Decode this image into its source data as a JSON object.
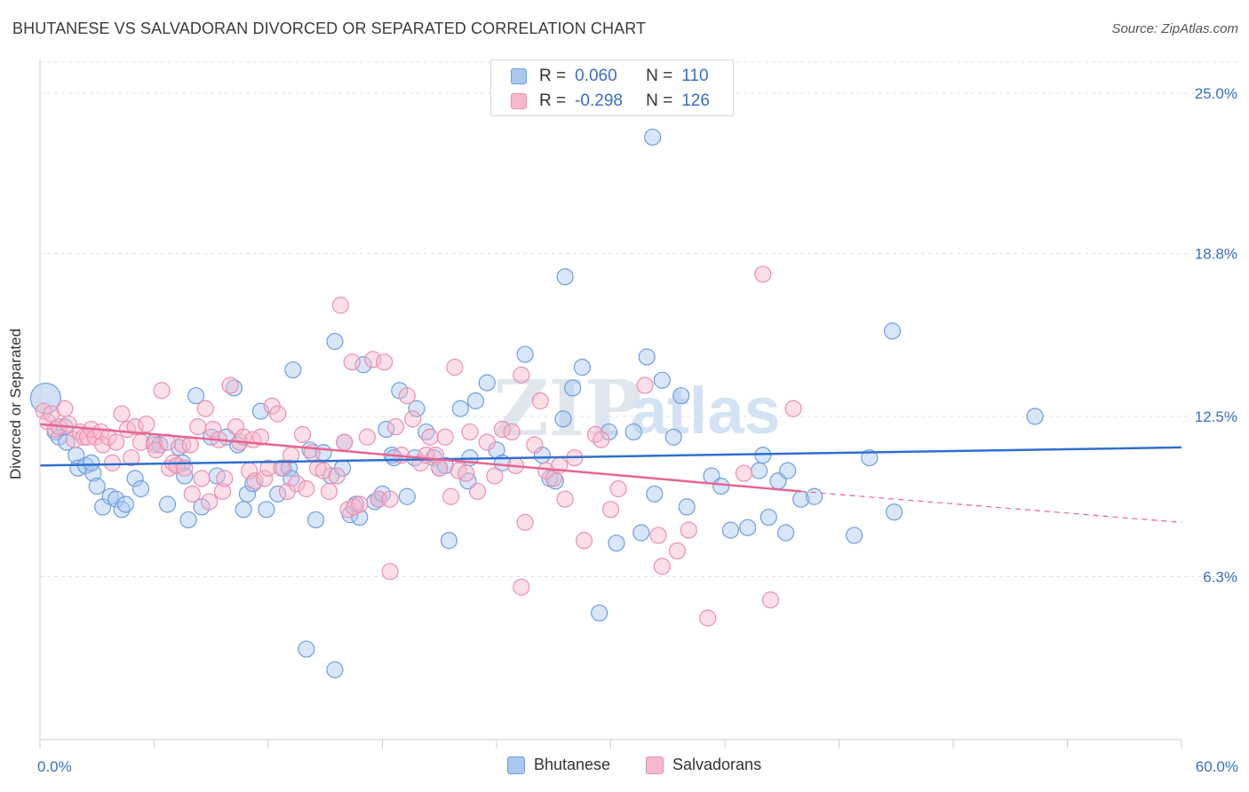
{
  "header": {
    "title": "BHUTANESE VS SALVADORAN DIVORCED OR SEPARATED CORRELATION CHART",
    "source": "Source: ZipAtlas.com"
  },
  "legend": {
    "row1": {
      "r_label": "R =",
      "r_value": "0.060",
      "n_label": "N =",
      "n_value": "110"
    },
    "row2": {
      "r_label": "R =",
      "r_value": "-0.298",
      "n_label": "N =",
      "n_value": "126"
    }
  },
  "bottom_legend": {
    "series1": "Bhutanese",
    "series2": "Salvadorans"
  },
  "watermark": {
    "zip": "ZIP",
    "atlas": "atlas"
  },
  "colors": {
    "blue_fill": "#a9c8f0",
    "blue_stroke": "#6f9fe0",
    "blue_line": "#2f6fd0",
    "pink_fill": "#f6b8cc",
    "pink_stroke": "#ec8fae",
    "pink_line": "#e6668f",
    "axis_label": "#3a6fc4",
    "grid": "#e0e0e0"
  },
  "chart_data": {
    "type": "scatter",
    "title": "BHUTANESE VS SALVADORAN DIVORCED OR SEPARATED CORRELATION CHART",
    "xlabel": "",
    "ylabel": "Divorced or Separated",
    "xlim": [
      0,
      60
    ],
    "ylim": [
      0,
      26.2
    ],
    "x_tick_labels": [
      "0.0%",
      "60.0%"
    ],
    "y_ticks": [
      6.3,
      12.5,
      18.8,
      25.0
    ],
    "y_tick_labels": [
      "6.3%",
      "12.5%",
      "18.8%",
      "25.0%"
    ],
    "grid": "horizontal dashed",
    "legend_position": "top-center",
    "series": [
      {
        "name": "Bhutanese",
        "r": 0.06,
        "n": 110,
        "trend": {
          "x": [
            0,
            60
          ],
          "y": [
            10.6,
            11.3
          ]
        },
        "points": [
          [
            0.3,
            13.2
          ],
          [
            0.8,
            11.9
          ],
          [
            1.0,
            11.7
          ],
          [
            1.3,
            12.1
          ],
          [
            1.4,
            11.5
          ],
          [
            1.9,
            11.0
          ],
          [
            2.0,
            10.5
          ],
          [
            2.4,
            10.6
          ],
          [
            2.8,
            10.3
          ],
          [
            2.7,
            10.7
          ],
          [
            3.0,
            9.8
          ],
          [
            3.3,
            9.0
          ],
          [
            3.7,
            9.4
          ],
          [
            4.0,
            9.3
          ],
          [
            4.3,
            8.9
          ],
          [
            4.5,
            9.1
          ],
          [
            5.0,
            10.1
          ],
          [
            5.3,
            9.7
          ],
          [
            6.0,
            11.5
          ],
          [
            6.3,
            11.4
          ],
          [
            6.7,
            9.1
          ],
          [
            7.3,
            11.3
          ],
          [
            7.5,
            10.7
          ],
          [
            7.6,
            10.2
          ],
          [
            7.8,
            8.5
          ],
          [
            8.2,
            13.3
          ],
          [
            8.5,
            9.0
          ],
          [
            9.0,
            11.7
          ],
          [
            9.3,
            10.2
          ],
          [
            9.8,
            11.7
          ],
          [
            10.2,
            13.6
          ],
          [
            10.4,
            11.4
          ],
          [
            10.7,
            8.9
          ],
          [
            10.9,
            9.5
          ],
          [
            11.2,
            9.9
          ],
          [
            11.6,
            12.7
          ],
          [
            11.9,
            8.9
          ],
          [
            12.5,
            9.5
          ],
          [
            12.8,
            10.5
          ],
          [
            13.1,
            10.5
          ],
          [
            13.2,
            10.1
          ],
          [
            13.3,
            14.3
          ],
          [
            14.2,
            11.2
          ],
          [
            14.5,
            8.5
          ],
          [
            14.9,
            11.1
          ],
          [
            15.3,
            10.2
          ],
          [
            15.5,
            15.4
          ],
          [
            15.9,
            10.5
          ],
          [
            16.0,
            11.5
          ],
          [
            16.3,
            8.7
          ],
          [
            16.6,
            9.1
          ],
          [
            16.8,
            8.6
          ],
          [
            17.0,
            14.5
          ],
          [
            17.6,
            9.2
          ],
          [
            17.8,
            9.3
          ],
          [
            18.0,
            9.5
          ],
          [
            18.2,
            12.0
          ],
          [
            18.5,
            11.0
          ],
          [
            18.6,
            10.9
          ],
          [
            18.9,
            13.5
          ],
          [
            19.3,
            9.4
          ],
          [
            19.7,
            10.9
          ],
          [
            19.8,
            12.8
          ],
          [
            20.3,
            11.9
          ],
          [
            20.7,
            10.9
          ],
          [
            21.0,
            10.5
          ],
          [
            21.3,
            10.6
          ],
          [
            21.5,
            7.7
          ],
          [
            22.1,
            12.8
          ],
          [
            22.5,
            10.0
          ],
          [
            22.6,
            10.9
          ],
          [
            22.9,
            13.1
          ],
          [
            23.5,
            13.8
          ],
          [
            24.0,
            11.2
          ],
          [
            24.3,
            10.7
          ],
          [
            25.5,
            14.9
          ],
          [
            26.4,
            11.0
          ],
          [
            26.8,
            10.1
          ],
          [
            27.1,
            10.0
          ],
          [
            27.5,
            12.4
          ],
          [
            27.6,
            17.9
          ],
          [
            28.0,
            13.6
          ],
          [
            28.5,
            14.4
          ],
          [
            29.4,
            4.9
          ],
          [
            29.9,
            11.9
          ],
          [
            30.3,
            7.6
          ],
          [
            31.2,
            11.9
          ],
          [
            31.6,
            8.0
          ],
          [
            31.9,
            14.8
          ],
          [
            32.3,
            9.5
          ],
          [
            32.7,
            13.9
          ],
          [
            33.3,
            11.7
          ],
          [
            33.7,
            13.3
          ],
          [
            34.0,
            9.0
          ],
          [
            35.3,
            10.2
          ],
          [
            35.8,
            9.8
          ],
          [
            36.3,
            8.1
          ],
          [
            37.2,
            8.2
          ],
          [
            37.8,
            10.4
          ],
          [
            38.0,
            11.0
          ],
          [
            38.3,
            8.6
          ],
          [
            38.8,
            10.0
          ],
          [
            39.2,
            8.0
          ],
          [
            39.3,
            10.4
          ],
          [
            40.0,
            9.3
          ],
          [
            40.7,
            9.4
          ],
          [
            42.8,
            7.9
          ],
          [
            43.6,
            10.9
          ],
          [
            44.8,
            15.8
          ],
          [
            44.9,
            8.8
          ],
          [
            15.5,
            2.7
          ],
          [
            14.0,
            3.5
          ],
          [
            32.2,
            23.3
          ],
          [
            52.3,
            12.5
          ]
        ]
      },
      {
        "name": "Salvadorans",
        "r": -0.298,
        "n": 126,
        "trend": {
          "x": [
            0,
            40
          ],
          "y": [
            12.2,
            9.6
          ]
        },
        "trend_dashed": {
          "x": [
            40,
            60
          ],
          "y": [
            9.6,
            8.4
          ]
        },
        "points": [
          [
            0.2,
            12.7
          ],
          [
            0.4,
            12.3
          ],
          [
            0.6,
            12.6
          ],
          [
            0.8,
            12.0
          ],
          [
            1.0,
            12.1
          ],
          [
            1.3,
            12.8
          ],
          [
            1.5,
            12.2
          ],
          [
            1.8,
            11.6
          ],
          [
            2.1,
            11.9
          ],
          [
            2.3,
            11.7
          ],
          [
            2.5,
            11.7
          ],
          [
            2.7,
            12.0
          ],
          [
            2.9,
            11.7
          ],
          [
            3.2,
            11.9
          ],
          [
            3.3,
            11.4
          ],
          [
            3.6,
            11.7
          ],
          [
            3.8,
            10.7
          ],
          [
            4.0,
            11.5
          ],
          [
            4.3,
            12.6
          ],
          [
            4.6,
            12.0
          ],
          [
            4.8,
            10.9
          ],
          [
            5.0,
            12.1
          ],
          [
            5.3,
            11.5
          ],
          [
            5.6,
            12.2
          ],
          [
            6.0,
            11.4
          ],
          [
            6.1,
            11.2
          ],
          [
            6.4,
            13.5
          ],
          [
            6.7,
            11.5
          ],
          [
            6.8,
            10.5
          ],
          [
            7.0,
            10.7
          ],
          [
            7.2,
            10.6
          ],
          [
            7.5,
            11.4
          ],
          [
            7.6,
            10.5
          ],
          [
            7.9,
            11.4
          ],
          [
            8.0,
            9.5
          ],
          [
            8.3,
            12.1
          ],
          [
            8.5,
            10.1
          ],
          [
            8.7,
            12.8
          ],
          [
            8.9,
            9.2
          ],
          [
            9.1,
            12.0
          ],
          [
            9.4,
            11.6
          ],
          [
            9.6,
            9.6
          ],
          [
            9.7,
            10.1
          ],
          [
            10.0,
            13.7
          ],
          [
            10.3,
            12.1
          ],
          [
            10.5,
            11.5
          ],
          [
            10.7,
            11.7
          ],
          [
            11.0,
            10.4
          ],
          [
            11.2,
            11.6
          ],
          [
            11.3,
            10.0
          ],
          [
            11.6,
            11.7
          ],
          [
            11.8,
            10.1
          ],
          [
            12.0,
            10.5
          ],
          [
            12.2,
            12.9
          ],
          [
            12.5,
            12.6
          ],
          [
            12.7,
            10.5
          ],
          [
            13.0,
            9.6
          ],
          [
            13.2,
            11.0
          ],
          [
            13.5,
            9.9
          ],
          [
            13.8,
            11.8
          ],
          [
            14.0,
            9.7
          ],
          [
            14.3,
            11.1
          ],
          [
            14.6,
            10.5
          ],
          [
            14.9,
            10.4
          ],
          [
            15.2,
            9.6
          ],
          [
            15.6,
            10.2
          ],
          [
            15.8,
            16.8
          ],
          [
            16.0,
            11.5
          ],
          [
            16.2,
            8.9
          ],
          [
            16.5,
            9.0
          ],
          [
            16.8,
            9.1
          ],
          [
            17.2,
            11.7
          ],
          [
            17.5,
            14.7
          ],
          [
            17.8,
            9.3
          ],
          [
            18.1,
            14.6
          ],
          [
            18.4,
            9.3
          ],
          [
            18.7,
            12.1
          ],
          [
            19.0,
            11.0
          ],
          [
            19.3,
            13.3
          ],
          [
            19.6,
            12.4
          ],
          [
            20.0,
            10.7
          ],
          [
            20.3,
            11.0
          ],
          [
            20.5,
            11.7
          ],
          [
            20.8,
            11.0
          ],
          [
            21.0,
            10.5
          ],
          [
            21.3,
            11.7
          ],
          [
            21.6,
            9.4
          ],
          [
            21.8,
            14.4
          ],
          [
            22.0,
            10.4
          ],
          [
            22.4,
            10.3
          ],
          [
            22.6,
            11.9
          ],
          [
            23.0,
            9.6
          ],
          [
            23.5,
            11.5
          ],
          [
            23.9,
            10.2
          ],
          [
            24.3,
            12.0
          ],
          [
            24.8,
            11.9
          ],
          [
            25.0,
            10.6
          ],
          [
            25.3,
            14.1
          ],
          [
            25.5,
            8.4
          ],
          [
            26.0,
            11.4
          ],
          [
            26.3,
            13.1
          ],
          [
            26.6,
            10.4
          ],
          [
            27.0,
            10.1
          ],
          [
            27.3,
            10.6
          ],
          [
            27.6,
            9.3
          ],
          [
            28.1,
            10.9
          ],
          [
            28.6,
            7.7
          ],
          [
            29.2,
            11.8
          ],
          [
            29.5,
            11.6
          ],
          [
            30.0,
            8.9
          ],
          [
            31.8,
            13.7
          ],
          [
            32.5,
            7.9
          ],
          [
            32.7,
            6.7
          ],
          [
            33.5,
            7.3
          ],
          [
            34.1,
            8.1
          ],
          [
            35.1,
            4.7
          ],
          [
            37.0,
            10.3
          ],
          [
            38.0,
            18.0
          ],
          [
            38.4,
            5.4
          ],
          [
            39.6,
            12.8
          ],
          [
            25.3,
            5.9
          ],
          [
            18.4,
            6.5
          ],
          [
            30.4,
            9.7
          ],
          [
            16.4,
            14.6
          ]
        ]
      }
    ]
  }
}
